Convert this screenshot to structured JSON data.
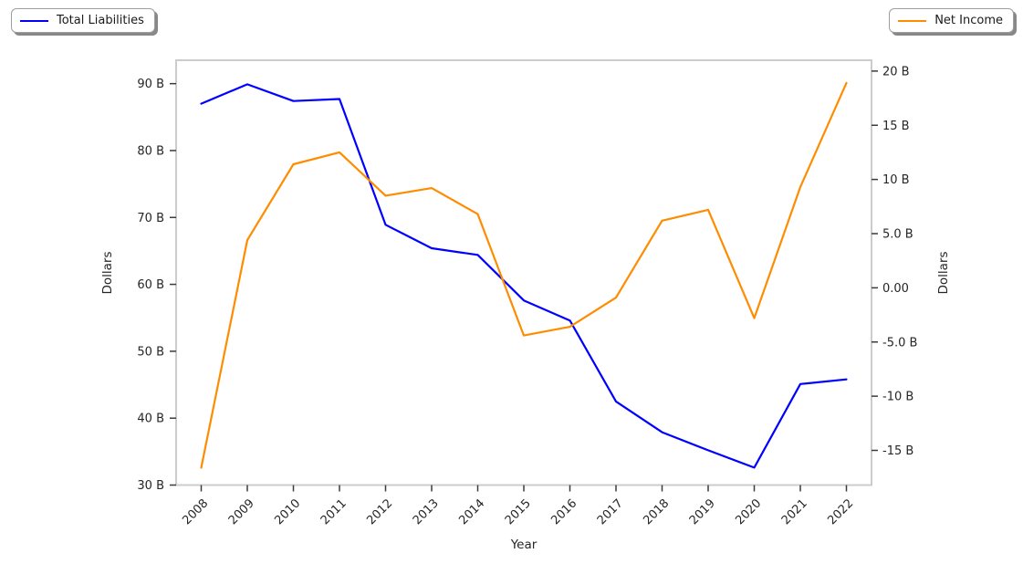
{
  "legend_left": {
    "label": "Total Liabilities"
  },
  "legend_right": {
    "label": "Net Income"
  },
  "chart_data": {
    "type": "line",
    "title": "",
    "xlabel": "Year",
    "grid": false,
    "legend_position": [
      "top-left",
      "top-right"
    ],
    "x": [
      "2008",
      "2009",
      "2010",
      "2011",
      "2012",
      "2013",
      "2014",
      "2015",
      "2016",
      "2017",
      "2018",
      "2019",
      "2020",
      "2021",
      "2022"
    ],
    "axes": {
      "left": {
        "label": "Dollars",
        "range": [
          30,
          93.5
        ],
        "ticks": [
          {
            "value": 30,
            "label": "30 B"
          },
          {
            "value": 40,
            "label": "40 B"
          },
          {
            "value": 50,
            "label": "50 B"
          },
          {
            "value": 60,
            "label": "60 B"
          },
          {
            "value": 70,
            "label": "70 B"
          },
          {
            "value": 80,
            "label": "80 B"
          },
          {
            "value": 90,
            "label": "90 B"
          }
        ]
      },
      "right": {
        "label": "Dollars",
        "range": [
          -18.2,
          21.0
        ],
        "ticks": [
          {
            "value": 20,
            "label": "20 B"
          },
          {
            "value": 15,
            "label": "15 B"
          },
          {
            "value": 10,
            "label": "10 B"
          },
          {
            "value": 5,
            "label": "5.0 B"
          },
          {
            "value": 0,
            "label": "0.00"
          },
          {
            "value": -5,
            "label": "-5.0 B"
          },
          {
            "value": -10,
            "label": "-10 B"
          },
          {
            "value": -15,
            "label": "-15 B"
          }
        ]
      }
    },
    "series": [
      {
        "name": "Total Liabilities",
        "axis": "left",
        "color": "#0000ff",
        "unit": "billions of dollars",
        "values": [
          87.0,
          89.9,
          87.4,
          87.7,
          68.9,
          65.4,
          64.4,
          57.6,
          54.6,
          42.5,
          37.9,
          35.2,
          32.6,
          45.1,
          45.8
        ]
      },
      {
        "name": "Net Income",
        "axis": "right",
        "color": "#ff8c00",
        "unit": "billions of dollars",
        "values": [
          -16.6,
          4.4,
          11.4,
          12.5,
          8.5,
          9.2,
          6.8,
          -4.4,
          -3.6,
          -0.9,
          6.2,
          7.2,
          -2.8,
          9.3,
          18.9
        ]
      }
    ],
    "colors": {
      "total_liabilities": "#0000ff",
      "net_income": "#ff8c00",
      "spine": "#cccccc",
      "tick": "#3b3b3b"
    }
  }
}
